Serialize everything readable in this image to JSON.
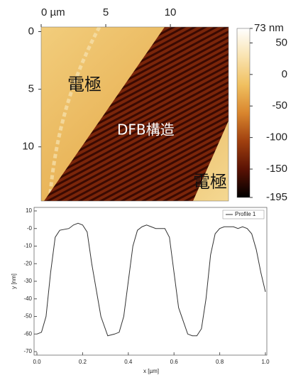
{
  "chart_data": [
    {
      "type": "image",
      "xticks": [
        {
          "value": 0,
          "label": "0 µm"
        },
        5,
        10
      ],
      "xlim": [
        0,
        14.5
      ],
      "yticks": [
        0,
        5,
        10
      ],
      "ylim": [
        -0.4,
        14.7
      ],
      "colorlim": [
        -195,
        73
      ],
      "colorticks": [
        {
          "value": 73,
          "label": "73 nm"
        },
        50,
        0,
        -50,
        -100,
        -150,
        -195
      ],
      "colormap": [
        "#000000",
        "#5a1204",
        "#a0400f",
        "#d9862e",
        "#f0c060",
        "#f9e3b0",
        "#ffffff"
      ],
      "annotations": [
        "電極",
        "DFB構造",
        "電極"
      ]
    },
    {
      "type": "line",
      "x": [
        0.0,
        0.02,
        0.04,
        0.06,
        0.08,
        0.1,
        0.14,
        0.16,
        0.18,
        0.2,
        0.22,
        0.24,
        0.28,
        0.31,
        0.34,
        0.36,
        0.38,
        0.4,
        0.42,
        0.44,
        0.46,
        0.48,
        0.5,
        0.52,
        0.56,
        0.58,
        0.6,
        0.62,
        0.66,
        0.68,
        0.7,
        0.72,
        0.74,
        0.76,
        0.78,
        0.8,
        0.82,
        0.86,
        0.88,
        0.9,
        0.92,
        0.94,
        0.96,
        0.98,
        1.0
      ],
      "series": [
        {
          "name": "Profile 1",
          "color": "#333333",
          "values": [
            -60,
            -59,
            -50,
            -25,
            -5,
            -1,
            0,
            2,
            3,
            2,
            -2,
            -20,
            -50,
            -61,
            -60,
            -59,
            -50,
            -30,
            -10,
            -1,
            1,
            2,
            1,
            0,
            0,
            -5,
            -25,
            -45,
            -60,
            -61,
            -61,
            -57,
            -40,
            -15,
            -3,
            0,
            1,
            1,
            0,
            1,
            0,
            -3,
            -12,
            -25,
            -36
          ]
        }
      ],
      "xlabel": "x [µm]",
      "ylabel": "y [nm]",
      "xlim": [
        0,
        1
      ],
      "ylim": [
        -72,
        12
      ],
      "xticks": [
        {
          "value": 0,
          "label": "0.0"
        },
        0.2,
        0.4,
        0.6,
        0.8,
        {
          "value": 1,
          "label": "1.0"
        }
      ],
      "yticks": [
        10,
        {
          "value": 0,
          "label": "-0"
        },
        -10,
        -20,
        -30,
        -40,
        -50,
        -60,
        -70
      ],
      "legend": "top-right",
      "grid": false
    }
  ]
}
